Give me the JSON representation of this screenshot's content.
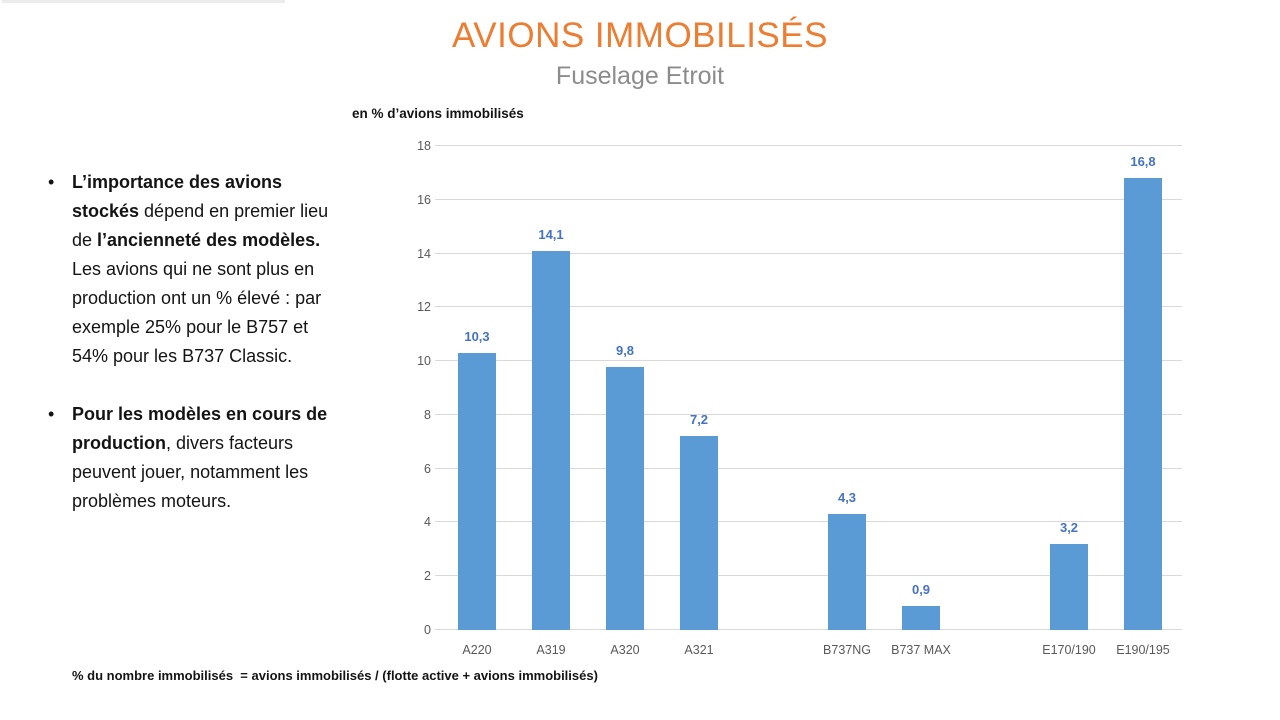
{
  "slide": {
    "title": "AVIONS IMMOBILISÉS",
    "subtitle": "Fuselage Etroit",
    "footnote": "% du nombre immobilisés  = avions immobilisés / (flotte active + avions immobilisés)"
  },
  "bullets": [
    {
      "segments": [
        {
          "text": "L’importance des avions stockés",
          "bold": true
        },
        {
          "text": " dépend en premier lieu de ",
          "bold": false
        },
        {
          "text": "l’ancienneté des modèles.",
          "bold": true
        },
        {
          "text": " Les avions qui ne sont plus en production ont un % élevé : par exemple 25% pour le B757 et 54% pour les B737 Classic.",
          "bold": false
        }
      ]
    },
    {
      "segments": [
        {
          "text": "Pour les modèles en cours de production",
          "bold": true
        },
        {
          "text": ", divers facteurs peuvent jouer, notamment les problèmes moteurs.",
          "bold": false
        }
      ]
    }
  ],
  "chart_data": {
    "type": "bar",
    "title": "en % d’avions immobilisés",
    "categories": [
      "A220",
      "A319",
      "A320",
      "A321",
      "",
      "B737NG",
      "B737 MAX",
      "",
      "E170/190",
      "E190/195"
    ],
    "values": [
      10.3,
      14.1,
      9.8,
      7.2,
      null,
      4.3,
      0.9,
      null,
      3.2,
      16.8
    ],
    "value_labels": [
      "10,3",
      "14,1",
      "9,8",
      "7,2",
      "",
      "4,3",
      "0,9",
      "",
      "3,2",
      "16,8"
    ],
    "xlabel": "",
    "ylabel": "",
    "ylim": [
      0,
      18
    ],
    "yticks": [
      0,
      2,
      4,
      6,
      8,
      10,
      12,
      14,
      16,
      18
    ],
    "grid": true,
    "legend": "none",
    "bar_color": "#5B9BD5",
    "label_color": "#4472C4",
    "axis_text_color": "#595959",
    "gridline_color": "#d9d9d9"
  },
  "colors": {
    "title": "#ED7D31",
    "subtitle": "#8c8c8c",
    "body_text": "#141414"
  }
}
